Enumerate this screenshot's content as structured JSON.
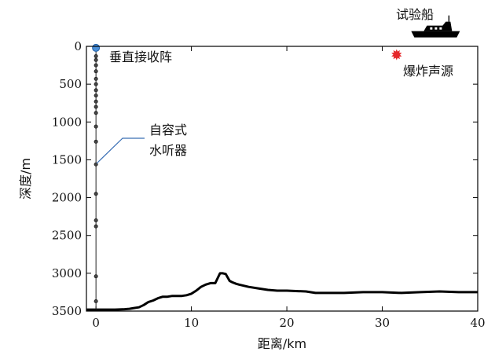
{
  "chart_data": {
    "type": "line",
    "xlabel": "距离/km",
    "ylabel": "深度/m",
    "xlim": [
      -1,
      40
    ],
    "ylim": [
      3500,
      0
    ],
    "x_ticks": [
      0,
      10,
      20,
      30,
      40
    ],
    "y_ticks": [
      0,
      500,
      1000,
      1500,
      2000,
      2500,
      3000,
      3500
    ],
    "grid": false,
    "bathymetry": {
      "x": [
        -1,
        0,
        1,
        2,
        3,
        3.5,
        4,
        4.5,
        5,
        5.5,
        6,
        6.5,
        7,
        7.5,
        8,
        8.5,
        9,
        9.5,
        10,
        10.5,
        11,
        11.5,
        12,
        12.5,
        13,
        13.3,
        13.6,
        14,
        14.3,
        14.7,
        15,
        16,
        17,
        18,
        19,
        20,
        22,
        23,
        24,
        26,
        28,
        30,
        32,
        34,
        36,
        38,
        40
      ],
      "depth": [
        3480,
        3480,
        3480,
        3480,
        3475,
        3470,
        3460,
        3450,
        3420,
        3380,
        3360,
        3330,
        3310,
        3310,
        3300,
        3300,
        3300,
        3290,
        3270,
        3230,
        3180,
        3150,
        3130,
        3130,
        3000,
        3000,
        3010,
        3100,
        3120,
        3140,
        3150,
        3180,
        3200,
        3220,
        3230,
        3230,
        3240,
        3260,
        3260,
        3260,
        3250,
        3250,
        3260,
        3250,
        3240,
        3250,
        3250
      ]
    },
    "array": {
      "x": 0,
      "sensor_depths": [
        0,
        130,
        180,
        250,
        330,
        430,
        500,
        580,
        650,
        730,
        800,
        880,
        1060,
        1260,
        1560,
        1950,
        2300,
        2380,
        3040,
        3370
      ]
    },
    "buoy": {
      "x": 0,
      "depth": 20
    },
    "source": {
      "x": 31.5,
      "depth": 110
    },
    "ship": {
      "x": 35.5,
      "depth": -180
    }
  },
  "annotations": {
    "array_label": "垂直接收阵",
    "hydrophone_line1": "自容式",
    "hydrophone_line2": "水听器",
    "ship_label": "试验船",
    "source_label": "爆炸声源"
  },
  "colors": {
    "buoy": "#4a90d9",
    "source": "#e5282b",
    "leader": "#3a6fb5"
  }
}
